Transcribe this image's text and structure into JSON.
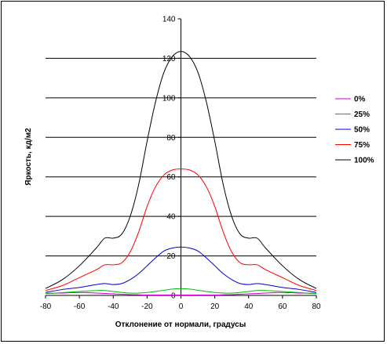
{
  "chart_data": {
    "type": "line",
    "xlabel": "Отклонение от нормали, градусы",
    "ylabel": "Яркость, кд/м2",
    "xlim": [
      -80,
      80
    ],
    "ylim": [
      0,
      140
    ],
    "x_ticks": [
      "-80",
      "-60",
      "-40",
      "-20",
      "0",
      "20",
      "40",
      "60",
      "80"
    ],
    "y_ticks": [
      "0",
      "20",
      "40",
      "60",
      "80",
      "100",
      "120",
      "140"
    ],
    "grid": "horizontal",
    "legend_position": "right",
    "x": [
      -80,
      -70,
      -60,
      -50,
      -45,
      -40,
      -35,
      -30,
      -25,
      -20,
      -15,
      -10,
      -5,
      0,
      5,
      10,
      15,
      20,
      25,
      30,
      35,
      40,
      45,
      50,
      60,
      70,
      80
    ],
    "series": [
      {
        "name": "0%",
        "color": "#cc00cc",
        "values": [
          1.0,
          1.2,
          1.5,
          1.2,
          1.0,
          0.8,
          0.6,
          0.4,
          0.3,
          0.2,
          0.2,
          0.2,
          0.2,
          0.2,
          0.2,
          0.2,
          0.2,
          0.2,
          0.3,
          0.4,
          0.6,
          0.8,
          1.0,
          1.2,
          1.5,
          1.2,
          1.0
        ]
      },
      {
        "name": "25%",
        "color": "#00bb00",
        "values": [
          1.0,
          1.4,
          2.0,
          2.5,
          2.5,
          2.0,
          1.5,
          1.2,
          1.2,
          1.5,
          2.0,
          2.6,
          3.2,
          3.4,
          3.2,
          2.6,
          2.0,
          1.5,
          1.2,
          1.2,
          1.5,
          2.0,
          2.5,
          2.5,
          2.0,
          1.4,
          1.0
        ]
      },
      {
        "name": "50%",
        "color": "#0000cc",
        "values": [
          1.5,
          3.0,
          4.0,
          5.5,
          6.0,
          5.5,
          6.0,
          8.0,
          11.0,
          15.0,
          19.0,
          22.5,
          24.0,
          24.5,
          24.0,
          22.5,
          19.0,
          15.0,
          11.0,
          8.0,
          6.0,
          5.5,
          6.0,
          5.5,
          4.0,
          3.0,
          1.5
        ]
      },
      {
        "name": "75%",
        "color": "#ff0000",
        "values": [
          2.5,
          5.0,
          9.0,
          13.0,
          15.5,
          15.5,
          16.5,
          22.0,
          32.0,
          45.0,
          55.0,
          61.0,
          63.5,
          64.0,
          63.5,
          61.0,
          55.0,
          45.0,
          32.0,
          22.0,
          16.5,
          15.5,
          15.5,
          13.0,
          9.0,
          5.0,
          2.5
        ]
      },
      {
        "name": "100%",
        "color": "#000000",
        "values": [
          3.5,
          8.0,
          15.0,
          24.0,
          29.0,
          29.0,
          31.0,
          40.0,
          56.0,
          78.0,
          98.0,
          113.0,
          121.0,
          123.5,
          121.0,
          113.0,
          98.0,
          78.0,
          56.0,
          40.0,
          31.0,
          29.0,
          29.0,
          24.0,
          15.0,
          8.0,
          3.5
        ]
      }
    ]
  }
}
